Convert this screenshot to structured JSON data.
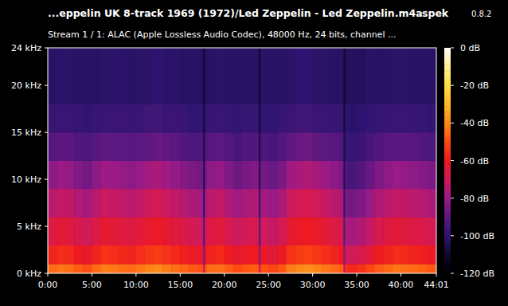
{
  "chart_data": {
    "type": "heatmap",
    "title": "...eppelin UK 8-track 1969 (1972)/Led Zeppelin - Led Zeppelin.m4a",
    "subtitle": "Stream 1 / 1: ALAC (Apple Lossless Audio Codec), 48000 Hz, 24 bits, channel ...",
    "annotations": [
      "spek",
      "0.8.2"
    ],
    "x": [
      0,
      1,
      2,
      3,
      4,
      5,
      6,
      7,
      8,
      9,
      10,
      11,
      12,
      13,
      14,
      15,
      16,
      17,
      17.6,
      17.8,
      18,
      19,
      20,
      21,
      22,
      23,
      23.9,
      24.1,
      25,
      26,
      27,
      28,
      29,
      30,
      31,
      32,
      33,
      33.5,
      33.7,
      34,
      35,
      36,
      37,
      38,
      39,
      40,
      41,
      42,
      43,
      44,
      44.0167
    ],
    "y": [
      0,
      1,
      3,
      6,
      9,
      12,
      15,
      18,
      24
    ],
    "cells": [
      [
        -45,
        -43,
        -44,
        -47,
        -49,
        -45,
        -42,
        -43,
        -44,
        -45,
        -43,
        -41,
        -40,
        -42,
        -44,
        -46,
        -48,
        -49,
        -70,
        -48,
        -45,
        -44,
        -47,
        -50,
        -48,
        -47,
        -70,
        -49,
        -51,
        -48,
        -42,
        -40,
        -39,
        -41,
        -43,
        -45,
        -47,
        -70,
        -55,
        -57,
        -55,
        -51,
        -47,
        -45,
        -43,
        -44,
        -45,
        -46,
        -48,
        -50
      ],
      [
        -58,
        -56,
        -57,
        -60,
        -62,
        -58,
        -55,
        -56,
        -57,
        -58,
        -56,
        -54,
        -53,
        -55,
        -57,
        -59,
        -61,
        -62,
        -83,
        -61,
        -58,
        -57,
        -60,
        -63,
        -61,
        -60,
        -83,
        -62,
        -64,
        -61,
        -55,
        -53,
        -52,
        -54,
        -56,
        -58,
        -60,
        -83,
        -68,
        -70,
        -68,
        -64,
        -60,
        -58,
        -56,
        -57,
        -58,
        -59,
        -61,
        -63
      ],
      [
        -66,
        -64,
        -65,
        -68,
        -70,
        -66,
        -63,
        -64,
        -65,
        -66,
        -64,
        -62,
        -61,
        -63,
        -65,
        -67,
        -69,
        -70,
        -91,
        -69,
        -66,
        -65,
        -68,
        -71,
        -69,
        -68,
        -91,
        -70,
        -72,
        -69,
        -63,
        -61,
        -60,
        -62,
        -64,
        -66,
        -68,
        -91,
        -76,
        -78,
        -76,
        -72,
        -68,
        -66,
        -64,
        -65,
        -66,
        -67,
        -69,
        -71
      ],
      [
        -74,
        -72,
        -73,
        -76,
        -78,
        -74,
        -71,
        -72,
        -73,
        -74,
        -72,
        -70,
        -69,
        -71,
        -73,
        -75,
        -77,
        -78,
        -99,
        -77,
        -74,
        -73,
        -76,
        -79,
        -77,
        -76,
        -99,
        -78,
        -80,
        -77,
        -71,
        -69,
        -68,
        -70,
        -72,
        -74,
        -76,
        -99,
        -84,
        -86,
        -84,
        -80,
        -76,
        -74,
        -72,
        -73,
        -74,
        -75,
        -77,
        -79
      ],
      [
        -82,
        -80,
        -81,
        -84,
        -86,
        -82,
        -79,
        -80,
        -81,
        -82,
        -80,
        -78,
        -77,
        -79,
        -81,
        -83,
        -85,
        -86,
        -104,
        -85,
        -82,
        -81,
        -84,
        -87,
        -85,
        -84,
        -104,
        -86,
        -88,
        -85,
        -79,
        -77,
        -76,
        -78,
        -80,
        -82,
        -84,
        -104,
        -92,
        -94,
        -92,
        -88,
        -84,
        -82,
        -80,
        -81,
        -82,
        -83,
        -85,
        -87
      ],
      [
        -91,
        -90,
        -90,
        -92,
        -93,
        -91,
        -89,
        -90,
        -90,
        -91,
        -90,
        -89,
        -88,
        -89,
        -90,
        -92,
        -93,
        -93,
        -106,
        -92,
        -91,
        -90,
        -92,
        -94,
        -92,
        -92,
        -106,
        -93,
        -94,
        -92,
        -89,
        -88,
        -87,
        -89,
        -90,
        -91,
        -92,
        -106,
        -97,
        -98,
        -97,
        -94,
        -92,
        -91,
        -90,
        -90,
        -91,
        -92,
        -93,
        -94
      ],
      [
        -98,
        -97,
        -97,
        -98,
        -99,
        -98,
        -97,
        -97,
        -97,
        -98,
        -97,
        -96,
        -96,
        -97,
        -97,
        -98,
        -99,
        -99,
        -108,
        -98,
        -98,
        -97,
        -98,
        -99,
        -98,
        -98,
        -108,
        -99,
        -99,
        -98,
        -97,
        -96,
        -96,
        -97,
        -97,
        -98,
        -98,
        -108,
        -100,
        -101,
        -100,
        -99,
        -98,
        -98,
        -97,
        -97,
        -98,
        -98,
        -99,
        -99
      ],
      [
        -102,
        -101,
        -101,
        -102,
        -102,
        -102,
        -101,
        -101,
        -101,
        -102,
        -101,
        -101,
        -100,
        -101,
        -101,
        -102,
        -102,
        -102,
        -110,
        -102,
        -102,
        -101,
        -102,
        -102,
        -102,
        -102,
        -110,
        -102,
        -102,
        -102,
        -101,
        -100,
        -100,
        -101,
        -101,
        -102,
        -102,
        -110,
        -103,
        -103,
        -103,
        -102,
        -102,
        -102,
        -101,
        -101,
        -102,
        -102,
        -102,
        -102
      ]
    ],
    "xlim": [
      0,
      44.0167
    ],
    "xticks": [
      {
        "value": 0,
        "label": "0:00"
      },
      {
        "value": 5,
        "label": "5:00"
      },
      {
        "value": 10,
        "label": "10:00"
      },
      {
        "value": 15,
        "label": "15:00"
      },
      {
        "value": 20,
        "label": "20:00"
      },
      {
        "value": 25,
        "label": "25:00"
      },
      {
        "value": 30,
        "label": "30:00"
      },
      {
        "value": 35,
        "label": "35:00"
      },
      {
        "value": 40,
        "label": "40:00"
      },
      {
        "value": 44.0167,
        "label": "44:01"
      }
    ],
    "ylim": [
      0,
      24
    ],
    "yticks": [
      {
        "value": 0,
        "label": "0 kHz"
      },
      {
        "value": 5,
        "label": "5 kHz"
      },
      {
        "value": 10,
        "label": "10 kHz"
      },
      {
        "value": 15,
        "label": "15 kHz"
      },
      {
        "value": 20,
        "label": "20 kHz"
      },
      {
        "value": 24,
        "label": "24 kHz"
      }
    ],
    "colorbar": {
      "range": [
        -120,
        0
      ],
      "ticks": [
        {
          "value": 0,
          "label": "0 dB"
        },
        {
          "value": -20,
          "label": "-20 dB"
        },
        {
          "value": -40,
          "label": "-40 dB"
        },
        {
          "value": -60,
          "label": "-60 dB"
        },
        {
          "value": -80,
          "label": "-80 dB"
        },
        {
          "value": -100,
          "label": "-100 dB"
        },
        {
          "value": -120,
          "label": "-120 dB"
        }
      ]
    },
    "grid": false
  }
}
